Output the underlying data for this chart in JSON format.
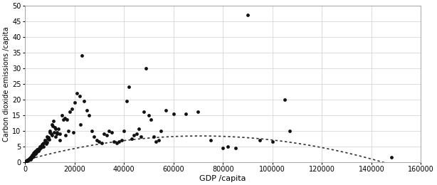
{
  "scatter_points": [
    [
      200,
      0.1
    ],
    [
      300,
      0.1
    ],
    [
      400,
      0.2
    ],
    [
      500,
      0.3
    ],
    [
      600,
      0.2
    ],
    [
      700,
      0.4
    ],
    [
      800,
      0.3
    ],
    [
      900,
      0.5
    ],
    [
      1000,
      0.4
    ],
    [
      1100,
      0.6
    ],
    [
      1200,
      0.5
    ],
    [
      1300,
      0.7
    ],
    [
      1400,
      0.6
    ],
    [
      1500,
      0.8
    ],
    [
      1600,
      0.9
    ],
    [
      1700,
      1.0
    ],
    [
      1800,
      0.7
    ],
    [
      1900,
      1.1
    ],
    [
      2000,
      1.0
    ],
    [
      2100,
      1.2
    ],
    [
      2200,
      1.3
    ],
    [
      2300,
      0.9
    ],
    [
      2400,
      1.4
    ],
    [
      2500,
      1.6
    ],
    [
      2600,
      1.2
    ],
    [
      2700,
      1.8
    ],
    [
      2800,
      2.0
    ],
    [
      2900,
      1.5
    ],
    [
      3000,
      2.2
    ],
    [
      3100,
      1.9
    ],
    [
      3200,
      2.5
    ],
    [
      3300,
      2.1
    ],
    [
      3400,
      1.7
    ],
    [
      3500,
      2.8
    ],
    [
      3600,
      2.3
    ],
    [
      3800,
      3.0
    ],
    [
      4000,
      3.2
    ],
    [
      4200,
      2.6
    ],
    [
      4400,
      3.5
    ],
    [
      4600,
      3.0
    ],
    [
      4800,
      3.3
    ],
    [
      5000,
      4.0
    ],
    [
      5200,
      3.8
    ],
    [
      5400,
      3.5
    ],
    [
      5600,
      4.2
    ],
    [
      5800,
      3.9
    ],
    [
      6000,
      5.0
    ],
    [
      6200,
      4.5
    ],
    [
      6400,
      4.8
    ],
    [
      6600,
      5.2
    ],
    [
      6800,
      4.9
    ],
    [
      7000,
      5.5
    ],
    [
      7200,
      5.8
    ],
    [
      7400,
      5.0
    ],
    [
      7600,
      6.0
    ],
    [
      8000,
      7.0
    ],
    [
      8200,
      6.5
    ],
    [
      8500,
      5.8
    ],
    [
      8800,
      6.2
    ],
    [
      9000,
      8.0
    ],
    [
      9200,
      7.5
    ],
    [
      9500,
      7.8
    ],
    [
      9800,
      7.2
    ],
    [
      10000,
      10.0
    ],
    [
      10200,
      9.5
    ],
    [
      10500,
      9.0
    ],
    [
      10800,
      8.5
    ],
    [
      11000,
      12.0
    ],
    [
      11200,
      11.5
    ],
    [
      11500,
      13.0
    ],
    [
      11800,
      9.5
    ],
    [
      12000,
      11.0
    ],
    [
      12300,
      8.0
    ],
    [
      12500,
      10.5
    ],
    [
      12800,
      9.0
    ],
    [
      13000,
      9.5
    ],
    [
      13500,
      10.5
    ],
    [
      14000,
      7.0
    ],
    [
      14200,
      9.0
    ],
    [
      15000,
      15.0
    ],
    [
      15500,
      13.5
    ],
    [
      16000,
      14.0
    ],
    [
      16500,
      8.5
    ],
    [
      17000,
      13.5
    ],
    [
      17500,
      10.0
    ],
    [
      18000,
      16.0
    ],
    [
      19000,
      17.0
    ],
    [
      19500,
      9.5
    ],
    [
      20000,
      19.0
    ],
    [
      21000,
      22.0
    ],
    [
      22000,
      21.0
    ],
    [
      22500,
      12.0
    ],
    [
      23000,
      34.0
    ],
    [
      24000,
      19.5
    ],
    [
      25000,
      16.5
    ],
    [
      26000,
      15.0
    ],
    [
      27000,
      10.0
    ],
    [
      28000,
      8.0
    ],
    [
      29000,
      7.0
    ],
    [
      30000,
      6.5
    ],
    [
      31000,
      6.0
    ],
    [
      32000,
      9.0
    ],
    [
      33000,
      8.5
    ],
    [
      34000,
      10.0
    ],
    [
      35000,
      9.5
    ],
    [
      36000,
      6.5
    ],
    [
      37000,
      6.0
    ],
    [
      38000,
      6.5
    ],
    [
      39000,
      7.0
    ],
    [
      40000,
      10.0
    ],
    [
      41000,
      19.5
    ],
    [
      42000,
      24.0
    ],
    [
      43000,
      7.5
    ],
    [
      44000,
      8.5
    ],
    [
      45000,
      9.0
    ],
    [
      46000,
      10.5
    ],
    [
      47000,
      8.0
    ],
    [
      48000,
      16.0
    ],
    [
      49000,
      30.0
    ],
    [
      50000,
      15.0
    ],
    [
      51000,
      13.5
    ],
    [
      52000,
      8.0
    ],
    [
      53000,
      6.5
    ],
    [
      54000,
      7.0
    ],
    [
      55000,
      10.0
    ],
    [
      57000,
      16.5
    ],
    [
      60000,
      15.5
    ],
    [
      65000,
      15.5
    ],
    [
      70000,
      16.0
    ],
    [
      75000,
      7.0
    ],
    [
      80000,
      4.5
    ],
    [
      82000,
      5.0
    ],
    [
      85000,
      4.5
    ],
    [
      90000,
      47.0
    ],
    [
      95000,
      7.0
    ],
    [
      100000,
      6.5
    ],
    [
      105000,
      20.0
    ],
    [
      107000,
      10.0
    ],
    [
      148000,
      1.5
    ]
  ],
  "xlabel": "GDP /capita",
  "ylabel": "Carbon dioxide emissions /capita",
  "xlim": [
    0,
    160000
  ],
  "ylim": [
    0,
    50
  ],
  "xticks": [
    0,
    20000,
    40000,
    60000,
    80000,
    100000,
    120000,
    140000,
    160000
  ],
  "yticks": [
    0,
    5,
    10,
    15,
    20,
    25,
    30,
    35,
    40,
    45,
    50
  ],
  "dot_color": "#111111",
  "dot_size": 12,
  "curve_color": "#333333",
  "background_color": "#ffffff",
  "grid_color": "#d0d0d0",
  "figsize": [
    6.14,
    2.6
  ],
  "dpi": 100,
  "curve_a": -1.55e-09,
  "curve_b": 0.00022,
  "curve_c": 0.5,
  "curve_x_start": 500,
  "curve_x_end": 155000
}
